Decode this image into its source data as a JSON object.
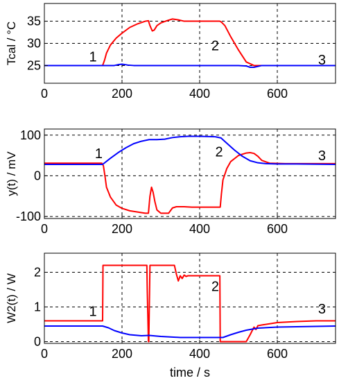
{
  "chart_data": [
    {
      "type": "line",
      "ylabel": "Tcal / °C",
      "xlabel": "",
      "xlim": [
        0,
        750
      ],
      "ylim": [
        21,
        39
      ],
      "xticks": [
        0,
        200,
        400,
        600
      ],
      "yticks": [
        25,
        30,
        35
      ],
      "grid": true,
      "annotations": [
        {
          "text": "1",
          "x": 125,
          "y": 27.0
        },
        {
          "text": "2",
          "x": 440,
          "y": 29.5
        },
        {
          "text": "3",
          "x": 715,
          "y": 26.3
        }
      ],
      "series": [
        {
          "color": "#ff0000",
          "x": [
            0,
            150,
            155,
            160,
            170,
            185,
            200,
            220,
            240,
            260,
            268,
            272,
            278,
            283,
            290,
            300,
            315,
            330,
            345,
            360,
            375,
            400,
            430,
            452,
            456,
            465,
            480,
            500,
            520,
            540,
            560,
            750
          ],
          "y": [
            25,
            25,
            26.2,
            27.8,
            29.6,
            31.2,
            32.3,
            33.6,
            34.4,
            35.0,
            35.1,
            34.0,
            32.8,
            33.0,
            34.0,
            34.6,
            35.1,
            35.5,
            35.3,
            35.0,
            35.0,
            35.0,
            35.0,
            35.0,
            34.8,
            34.0,
            31.5,
            28.5,
            25.8,
            25.0,
            25.0,
            25.0
          ]
        },
        {
          "color": "#0000ff",
          "x": [
            0,
            150,
            180,
            190,
            200,
            215,
            230,
            300,
            400,
            500,
            520,
            530,
            540,
            560,
            750
          ],
          "y": [
            25,
            25,
            25,
            25.2,
            25.3,
            25.1,
            25,
            25,
            25,
            25,
            24.9,
            24.6,
            24.6,
            25,
            25
          ]
        }
      ]
    },
    {
      "type": "line",
      "ylabel": "y(t) / mV",
      "xlabel": "",
      "xlim": [
        0,
        750
      ],
      "ylim": [
        -105,
        115
      ],
      "xticks": [
        0,
        200,
        400,
        600
      ],
      "yticks": [
        -100,
        0,
        100
      ],
      "grid": true,
      "annotations": [
        {
          "text": "1",
          "x": 140,
          "y": 55
        },
        {
          "text": "2",
          "x": 450,
          "y": 60
        },
        {
          "text": "3",
          "x": 715,
          "y": 50
        }
      ],
      "series": [
        {
          "color": "#ff0000",
          "x": [
            0,
            148,
            152,
            156,
            160,
            170,
            185,
            200,
            220,
            240,
            260,
            268,
            272,
            276,
            280,
            285,
            290,
            300,
            320,
            330,
            340,
            360,
            380,
            400,
            420,
            440,
            453,
            456,
            460,
            470,
            480,
            500,
            520,
            530,
            540,
            550,
            560,
            580,
            620,
            750
          ],
          "y": [
            31,
            31,
            25,
            0,
            -28,
            -52,
            -72,
            -80,
            -86,
            -89,
            -92,
            -92,
            -50,
            -28,
            -40,
            -65,
            -84,
            -92,
            -92,
            -79,
            -76,
            -76,
            -77,
            -77,
            -77,
            -77,
            -77,
            -45,
            -10,
            18,
            35,
            50,
            56,
            57,
            55,
            48,
            38,
            31,
            30,
            30
          ]
        },
        {
          "color": "#0000ff",
          "x": [
            0,
            150,
            170,
            190,
            210,
            230,
            250,
            270,
            290,
            310,
            330,
            350,
            370,
            400,
            440,
            455,
            470,
            490,
            510,
            530,
            550,
            570,
            600,
            650,
            750
          ],
          "y": [
            28,
            28,
            43,
            57,
            69,
            79,
            85,
            89,
            89,
            90,
            94,
            96,
            97,
            97,
            96,
            93,
            80,
            63,
            48,
            37,
            32,
            30,
            29,
            29,
            28
          ]
        }
      ]
    },
    {
      "type": "line",
      "ylabel": "W2(t) / W",
      "xlabel": "time / s",
      "xlim": [
        0,
        750
      ],
      "ylim": [
        -0.05,
        2.55
      ],
      "xticks": [
        0,
        200,
        400,
        600
      ],
      "yticks": [
        0,
        1,
        2
      ],
      "grid": true,
      "annotations": [
        {
          "text": "1",
          "x": 125,
          "y": 0.88
        },
        {
          "text": "2",
          "x": 440,
          "y": 1.6
        },
        {
          "text": "3",
          "x": 715,
          "y": 0.95
        }
      ],
      "series": [
        {
          "color": "#ff0000",
          "x": [
            0,
            150,
            151,
            264,
            265,
            268,
            269,
            272,
            273,
            335,
            340,
            345,
            350,
            355,
            360,
            365,
            370,
            380,
            400,
            452,
            453,
            520,
            530,
            540,
            545,
            550,
            560,
            600,
            650,
            700,
            750
          ],
          "y": [
            0.6,
            0.6,
            2.2,
            2.2,
            1.5,
            0,
            0,
            2.2,
            2.2,
            2.2,
            1.95,
            1.75,
            1.9,
            1.82,
            1.92,
            1.88,
            1.9,
            1.9,
            1.9,
            1.9,
            0,
            0,
            0.2,
            0.42,
            0.35,
            0.46,
            0.48,
            0.55,
            0.58,
            0.6,
            0.6
          ]
        },
        {
          "color": "#0000ff",
          "x": [
            0,
            150,
            165,
            180,
            200,
            220,
            250,
            270,
            300,
            350,
            400,
            450,
            460,
            480,
            500,
            520,
            550,
            600,
            650,
            750
          ],
          "y": [
            0.45,
            0.45,
            0.4,
            0.32,
            0.25,
            0.2,
            0.17,
            0.18,
            0.15,
            0.12,
            0.12,
            0.12,
            0.12,
            0.2,
            0.27,
            0.33,
            0.39,
            0.42,
            0.43,
            0.45
          ]
        }
      ]
    }
  ]
}
